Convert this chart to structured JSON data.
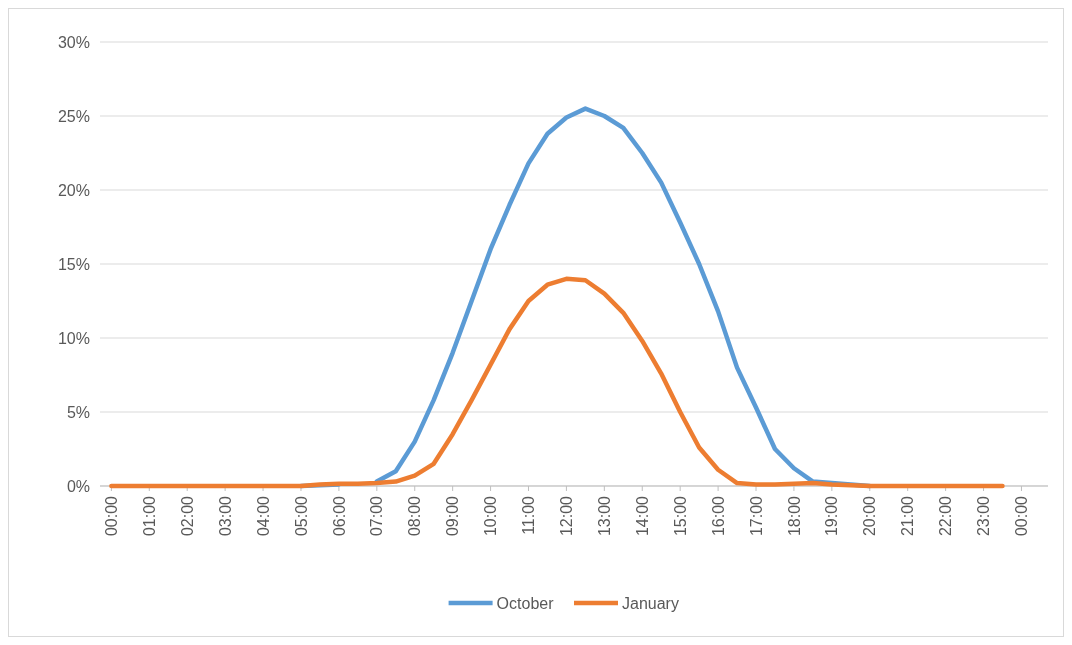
{
  "chart_data": {
    "type": "line",
    "x": [
      0,
      0.5,
      1,
      1.5,
      2,
      2.5,
      3,
      3.5,
      4,
      4.5,
      5,
      5.5,
      6,
      6.5,
      7,
      7.5,
      8,
      8.5,
      9,
      9.5,
      10,
      10.5,
      11,
      11.5,
      12,
      12.5,
      13,
      13.5,
      14,
      14.5,
      15,
      15.5,
      16,
      16.5,
      17,
      17.5,
      18,
      18.5,
      19,
      19.5,
      20,
      20.5,
      21,
      21.5,
      22,
      22.5,
      23,
      23.5
    ],
    "series": [
      {
        "name": "October",
        "color": "#5b9bd5",
        "values": [
          null,
          null,
          null,
          null,
          null,
          null,
          null,
          null,
          null,
          null,
          0,
          0.05,
          0.1,
          null,
          0.3,
          1,
          3,
          5.8,
          9,
          12.5,
          16,
          19,
          21.8,
          23.8,
          24.9,
          25.5,
          25,
          24.2,
          22.5,
          20.5,
          17.8,
          15,
          11.8,
          8,
          5.3,
          2.5,
          1.2,
          0.3,
          0.2,
          0.1,
          0,
          null,
          null,
          null,
          null,
          null,
          null,
          null
        ]
      },
      {
        "name": "January",
        "color": "#ed7d31",
        "values": [
          0,
          0,
          0,
          0,
          0,
          0,
          0,
          0,
          0,
          0,
          0,
          0.1,
          0.15,
          0.15,
          0.2,
          0.3,
          0.7,
          1.5,
          3.5,
          5.8,
          8.2,
          10.6,
          12.5,
          13.6,
          14,
          13.9,
          13,
          11.7,
          9.8,
          7.6,
          5,
          2.6,
          1.1,
          0.2,
          0.1,
          0.1,
          0.15,
          0.2,
          0.1,
          0.05,
          0,
          0,
          0,
          0,
          0,
          0,
          0,
          0
        ]
      }
    ],
    "xlim": [
      -0.3,
      24.7
    ],
    "xticks": [
      {
        "value": 0,
        "label": "00:00"
      },
      {
        "value": 1,
        "label": "01:00"
      },
      {
        "value": 2,
        "label": "02:00"
      },
      {
        "value": 3,
        "label": "03:00"
      },
      {
        "value": 4,
        "label": "04:00"
      },
      {
        "value": 5,
        "label": "05:00"
      },
      {
        "value": 6,
        "label": "06:00"
      },
      {
        "value": 7,
        "label": "07:00"
      },
      {
        "value": 8,
        "label": "08:00"
      },
      {
        "value": 9,
        "label": "09:00"
      },
      {
        "value": 10,
        "label": "10:00"
      },
      {
        "value": 11,
        "label": "11:00"
      },
      {
        "value": 12,
        "label": "12:00"
      },
      {
        "value": 13,
        "label": "13:00"
      },
      {
        "value": 14,
        "label": "14:00"
      },
      {
        "value": 15,
        "label": "15:00"
      },
      {
        "value": 16,
        "label": "16:00"
      },
      {
        "value": 17,
        "label": "17:00"
      },
      {
        "value": 18,
        "label": "18:00"
      },
      {
        "value": 19,
        "label": "19:00"
      },
      {
        "value": 20,
        "label": "20:00"
      },
      {
        "value": 21,
        "label": "21:00"
      },
      {
        "value": 22,
        "label": "22:00"
      },
      {
        "value": 23,
        "label": "23:00"
      },
      {
        "value": 24,
        "label": "00:00"
      }
    ],
    "ylim": [
      0,
      30
    ],
    "yticks": [
      {
        "value": 0,
        "label": "0%"
      },
      {
        "value": 5,
        "label": "5%"
      },
      {
        "value": 10,
        "label": "10%"
      },
      {
        "value": 15,
        "label": "15%"
      },
      {
        "value": 20,
        "label": "20%"
      },
      {
        "value": 25,
        "label": "25%"
      },
      {
        "value": 30,
        "label": "30%"
      }
    ],
    "grid": "y",
    "legend": "bottom",
    "marker": "none",
    "line_style": "solid"
  }
}
